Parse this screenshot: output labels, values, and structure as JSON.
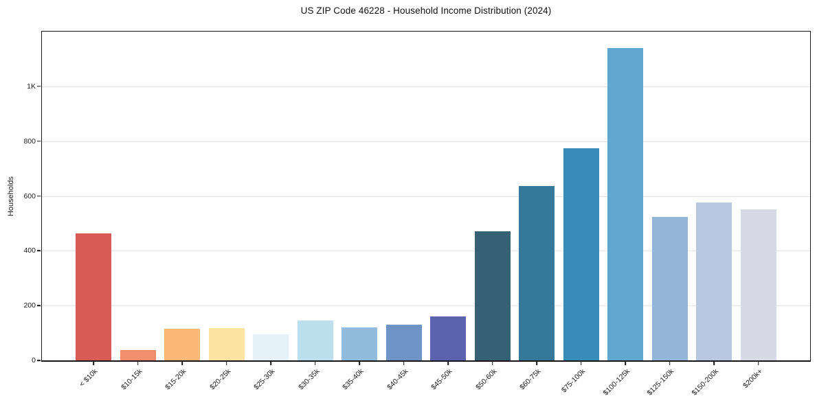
{
  "chart_data": {
    "type": "bar",
    "title": "US ZIP Code 46228 - Household Income Distribution (2024)",
    "xlabel": "",
    "ylabel": "Households",
    "categories": [
      "< $10k",
      "$10-15k",
      "$15-20k",
      "$20-25k",
      "$25-30k",
      "$30-35k",
      "$35-40k",
      "$40-45k",
      "$45-50k",
      "$50-60k",
      "$60-75k",
      "$75-100k",
      "$100-125k",
      "$125-150k",
      "$150-200k",
      "$200k+"
    ],
    "values": [
      463,
      38,
      116,
      119,
      96,
      145,
      121,
      131,
      161,
      471,
      636,
      773,
      1141,
      524,
      575,
      551
    ],
    "bar_colors": [
      "#d85c55",
      "#f28e6c",
      "#fab877",
      "#fce3a2",
      "#e4f2f8",
      "#bcdfed",
      "#92bcdc",
      "#6e93c4",
      "#5c63ad",
      "#366073",
      "#35789a",
      "#398cba",
      "#5fa7ce",
      "#93b6d8",
      "#b8c8e0",
      "#d7d9e7"
    ],
    "ylim": [
      0,
      1200
    ],
    "yticks": [
      0,
      200,
      400,
      600,
      800,
      1000
    ],
    "ytick_labels": [
      "0",
      "200",
      "400",
      "600",
      "800",
      "1K"
    ],
    "grid": "horizontal",
    "legend_position": "none",
    "colors": {
      "grid": "#e7e7e7",
      "spine": "#151515",
      "text": "#1a1a1a",
      "background": "#ffffff"
    }
  }
}
